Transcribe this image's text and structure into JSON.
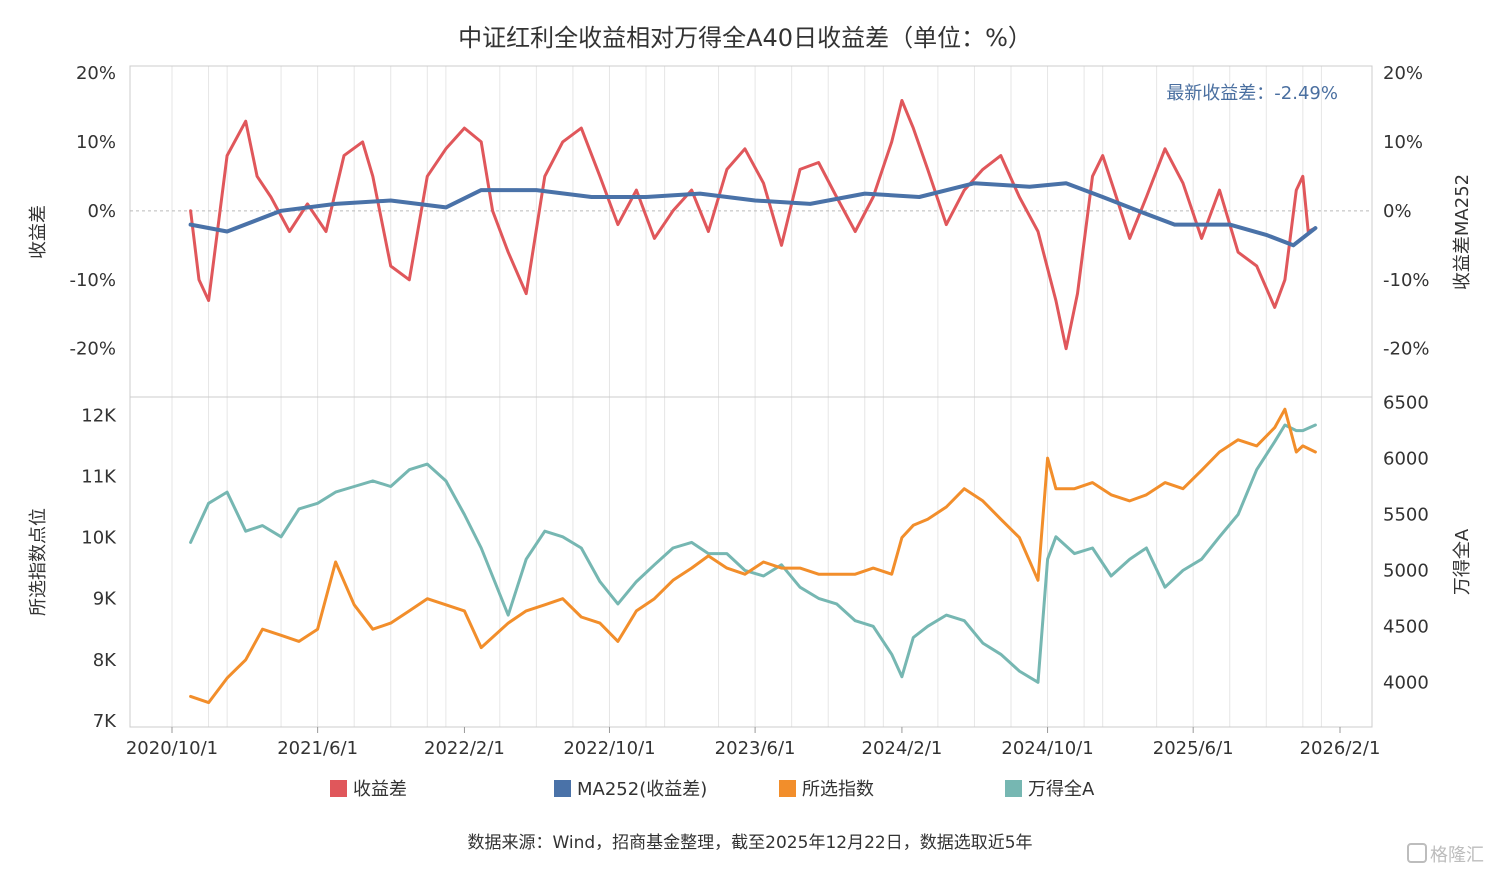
{
  "colors": {
    "spread": "#e0575b",
    "ma": "#4a72a8",
    "index": "#f28e2b",
    "wind": "#76b7b2",
    "grid": "#e6e6e6",
    "axis": "#cccccc"
  },
  "chart_data": {
    "type": "line",
    "title": "中证红利全收益相对万得全A40日收益差（单位：%）",
    "annotation": "最新收益差：-2.49%",
    "source": "数据来源：Wind，招商基金整理，截至2025年12月22日，数据选取近5年",
    "watermark": "格隆汇",
    "x_ticks": [
      "2020/10/1",
      "2021/6/1",
      "2022/2/1",
      "2022/10/1",
      "2023/6/1",
      "2024/2/1",
      "2024/10/1",
      "2025/6/1",
      "2026/2/1"
    ],
    "x_range": [
      "2020/10/1",
      "2026/2/1"
    ],
    "legend": [
      "收益差",
      "MA252(收益差)",
      "所选指数",
      "万得全A"
    ],
    "top_panel": {
      "ylabel_left": "收益差",
      "ylabel_right": "收益差MA252",
      "ylim": [
        -27,
        21
      ],
      "y_ticks": [
        "20%",
        "10%",
        "0%",
        "-10%",
        "-20%"
      ],
      "y_tick_values": [
        20,
        10,
        0,
        -10,
        -20
      ],
      "series": [
        {
          "name": "收益差",
          "x": [
            "2020/11/1",
            "2020/11/15",
            "2020/12/1",
            "2021/1/1",
            "2021/2/1",
            "2021/2/20",
            "2021/3/15",
            "2021/4/15",
            "2021/5/15",
            "2021/6/15",
            "2021/7/15",
            "2021/8/15",
            "2021/9/1",
            "2021/10/1",
            "2021/11/1",
            "2021/12/1",
            "2022/1/1",
            "2022/2/1",
            "2022/3/1",
            "2022/3/20",
            "2022/4/15",
            "2022/5/15",
            "2022/6/15",
            "2022/7/15",
            "2022/8/15",
            "2022/9/15",
            "2022/10/15",
            "2022/11/15",
            "2022/12/15",
            "2023/1/15",
            "2023/2/15",
            "2023/3/15",
            "2023/4/15",
            "2023/5/15",
            "2023/6/15",
            "2023/7/15",
            "2023/8/15",
            "2023/9/15",
            "2023/10/15",
            "2023/11/15",
            "2023/12/15",
            "2024/1/15",
            "2024/2/1",
            "2024/2/20",
            "2024/3/15",
            "2024/4/15",
            "2024/5/15",
            "2024/6/15",
            "2024/7/15",
            "2024/8/15",
            "2024/9/15",
            "2024/10/15",
            "2024/11/1",
            "2024/11/20",
            "2024/12/15",
            "2025/1/1",
            "2025/1/20",
            "2025/2/15",
            "2025/3/15",
            "2025/4/15",
            "2025/5/15",
            "2025/6/15",
            "2025/7/15",
            "2025/8/15",
            "2025/9/15",
            "2025/10/15",
            "2025/11/1",
            "2025/11/20",
            "2025/12/1",
            "2025/12/10",
            "2025/12/22"
          ],
          "values": [
            0,
            -10,
            -13,
            8,
            13,
            5,
            2,
            -3,
            1,
            -3,
            8,
            10,
            5,
            -8,
            -10,
            5,
            9,
            12,
            10,
            0,
            -6,
            -12,
            5,
            10,
            12,
            5,
            -2,
            3,
            -4,
            0,
            3,
            -3,
            6,
            9,
            4,
            -5,
            6,
            7,
            2,
            -3,
            2,
            10,
            16,
            12,
            6,
            -2,
            3,
            6,
            8,
            2,
            -3,
            -13,
            -20,
            -12,
            5,
            8,
            3,
            -4,
            2,
            9,
            4,
            -4,
            3,
            -6,
            -8,
            -14,
            -10,
            3,
            5,
            -3,
            -2.49
          ]
        },
        {
          "name": "MA252(收益差)",
          "x": [
            "2020/11/1",
            "2021/1/1",
            "2021/4/1",
            "2021/7/1",
            "2021/10/1",
            "2022/1/1",
            "2022/3/1",
            "2022/6/1",
            "2022/9/1",
            "2022/12/1",
            "2023/3/1",
            "2023/6/1",
            "2023/9/1",
            "2023/12/1",
            "2024/3/1",
            "2024/6/1",
            "2024/9/1",
            "2024/11/1",
            "2025/1/1",
            "2025/3/1",
            "2025/5/1",
            "2025/8/1",
            "2025/10/1",
            "2025/11/15",
            "2025/12/22"
          ],
          "values": [
            -2,
            -3,
            0,
            1,
            1.5,
            0.5,
            3,
            3,
            2,
            2,
            2.5,
            1.5,
            1,
            2.5,
            2,
            4,
            3.5,
            4,
            2,
            0,
            -2,
            -2,
            -3.5,
            -5,
            -2.5
          ]
        }
      ]
    },
    "bottom_panel": {
      "ylabel_left": "所选指数点位",
      "ylabel_right": "万得全A",
      "left_ylim": [
        6900,
        12300
      ],
      "right_ylim": [
        3600,
        6550
      ],
      "left_ticks": [
        "12K",
        "11K",
        "10K",
        "9K",
        "8K",
        "7K"
      ],
      "left_tick_values": [
        12000,
        11000,
        10000,
        9000,
        8000,
        7000
      ],
      "right_ticks": [
        "6500",
        "6000",
        "5500",
        "5000",
        "4500",
        "4000"
      ],
      "right_tick_values": [
        6500,
        6000,
        5500,
        5000,
        4500,
        4000
      ],
      "series": [
        {
          "name": "所选指数",
          "axis": "left",
          "x": [
            "2020/11/1",
            "2020/12/1",
            "2021/1/1",
            "2021/2/1",
            "2021/3/1",
            "2021/4/1",
            "2021/5/1",
            "2021/6/1",
            "2021/7/1",
            "2021/8/1",
            "2021/9/1",
            "2021/10/1",
            "2021/11/1",
            "2021/12/1",
            "2022/1/1",
            "2022/2/1",
            "2022/3/1",
            "2022/4/15",
            "2022/5/15",
            "2022/6/15",
            "2022/7/15",
            "2022/8/15",
            "2022/9/15",
            "2022/10/15",
            "2022/11/15",
            "2022/12/15",
            "2023/1/15",
            "2023/2/15",
            "2023/3/15",
            "2023/4/15",
            "2023/5/15",
            "2023/6/15",
            "2023/7/15",
            "2023/8/15",
            "2023/9/15",
            "2023/10/15",
            "2023/11/15",
            "2023/12/15",
            "2024/1/15",
            "2024/2/1",
            "2024/2/20",
            "2024/3/15",
            "2024/4/15",
            "2024/5/15",
            "2024/6/15",
            "2024/7/15",
            "2024/8/15",
            "2024/9/15",
            "2024/10/1",
            "2024/10/15",
            "2024/11/15",
            "2024/12/15",
            "2025/1/15",
            "2025/2/15",
            "2025/3/15",
            "2025/4/15",
            "2025/5/15",
            "2025/6/15",
            "2025/7/15",
            "2025/8/15",
            "2025/9/15",
            "2025/10/15",
            "2025/11/1",
            "2025/11/20",
            "2025/12/1",
            "2025/12/22"
          ],
          "values": [
            7400,
            7300,
            7700,
            8000,
            8500,
            8400,
            8300,
            8500,
            9600,
            8900,
            8500,
            8600,
            8800,
            9000,
            8900,
            8800,
            8200,
            8600,
            8800,
            8900,
            9000,
            8700,
            8600,
            8300,
            8800,
            9000,
            9300,
            9500,
            9700,
            9500,
            9400,
            9600,
            9500,
            9500,
            9400,
            9400,
            9400,
            9500,
            9400,
            10000,
            10200,
            10300,
            10500,
            10800,
            10600,
            10300,
            10000,
            9300,
            11300,
            10800,
            10800,
            10900,
            10700,
            10600,
            10700,
            10900,
            10800,
            11100,
            11400,
            11600,
            11500,
            11800,
            12100,
            11400,
            11500,
            11400
          ]
        },
        {
          "name": "万得全A",
          "axis": "right",
          "x": [
            "2020/11/1",
            "2020/12/1",
            "2021/1/1",
            "2021/2/1",
            "2021/3/1",
            "2021/4/1",
            "2021/5/1",
            "2021/6/1",
            "2021/7/1",
            "2021/8/1",
            "2021/9/1",
            "2021/10/1",
            "2021/11/1",
            "2021/12/1",
            "2022/1/1",
            "2022/2/1",
            "2022/3/1",
            "2022/4/15",
            "2022/5/15",
            "2022/6/15",
            "2022/7/15",
            "2022/8/15",
            "2022/9/15",
            "2022/10/15",
            "2022/11/15",
            "2022/12/15",
            "2023/1/15",
            "2023/2/15",
            "2023/3/15",
            "2023/4/15",
            "2023/5/15",
            "2023/6/15",
            "2023/7/15",
            "2023/8/15",
            "2023/9/15",
            "2023/10/15",
            "2023/11/15",
            "2023/12/15",
            "2024/1/15",
            "2024/2/1",
            "2024/2/20",
            "2024/3/15",
            "2024/4/15",
            "2024/5/15",
            "2024/6/15",
            "2024/7/15",
            "2024/8/15",
            "2024/9/15",
            "2024/10/1",
            "2024/10/15",
            "2024/11/15",
            "2024/12/15",
            "2025/1/15",
            "2025/2/15",
            "2025/3/15",
            "2025/4/15",
            "2025/5/15",
            "2025/6/15",
            "2025/7/15",
            "2025/8/15",
            "2025/9/15",
            "2025/10/15",
            "2025/11/1",
            "2025/11/20",
            "2025/12/1",
            "2025/12/22"
          ],
          "values": [
            5250,
            5600,
            5700,
            5350,
            5400,
            5300,
            5550,
            5600,
            5700,
            5750,
            5800,
            5750,
            5900,
            5950,
            5800,
            5500,
            5200,
            4600,
            5100,
            5350,
            5300,
            5200,
            4900,
            4700,
            4900,
            5050,
            5200,
            5250,
            5150,
            5150,
            5000,
            4950,
            5050,
            4850,
            4750,
            4700,
            4550,
            4500,
            4250,
            4050,
            4400,
            4500,
            4600,
            4550,
            4350,
            4250,
            4100,
            4000,
            5100,
            5300,
            5150,
            5200,
            4950,
            5100,
            5200,
            4850,
            5000,
            5100,
            5300,
            5500,
            5900,
            6150,
            6300,
            6250,
            6250,
            6300
          ]
        }
      ]
    }
  }
}
